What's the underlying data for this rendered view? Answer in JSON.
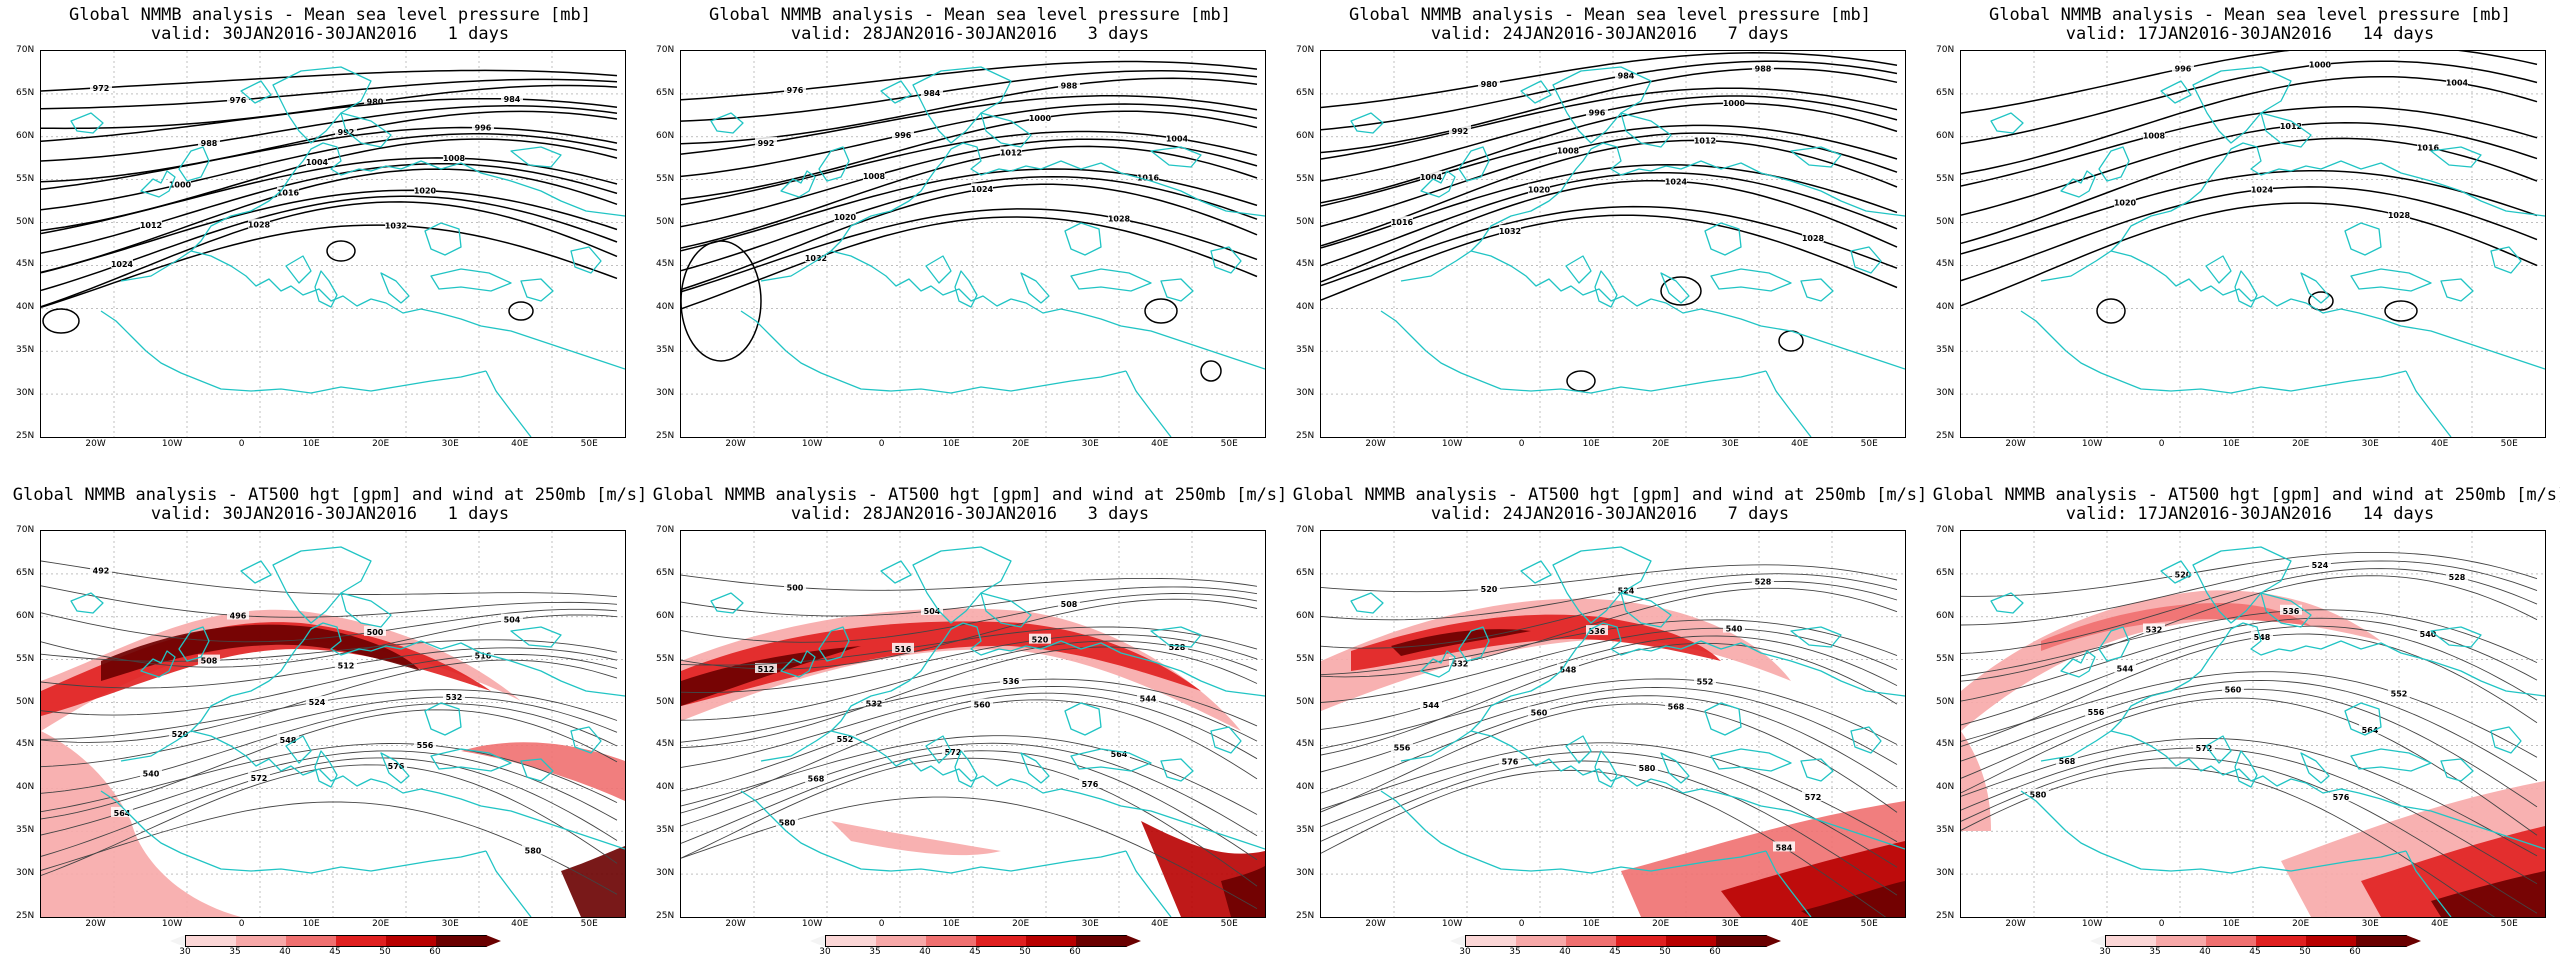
{
  "top_row": {
    "title_line1": "Global NMMB analysis - Mean sea level pressure [mb]",
    "panels": [
      {
        "valid": "valid: 30JAN2016-30JAN2016   1 days",
        "isobars": [
          "972",
          "976",
          "980",
          "984",
          "988",
          "992",
          "996",
          "1000",
          "1004",
          "1008",
          "1012",
          "1016",
          "1020",
          "1024",
          "1028",
          "1032"
        ]
      },
      {
        "valid": "valid: 28JAN2016-30JAN2016   3 days",
        "isobars": [
          "976",
          "984",
          "988",
          "992",
          "996",
          "1000",
          "1004",
          "1008",
          "1012",
          "1016",
          "1020",
          "1024",
          "1028",
          "1032"
        ]
      },
      {
        "valid": "valid: 24JAN2016-30JAN2016   7 days",
        "isobars": [
          "980",
          "984",
          "988",
          "992",
          "996",
          "1000",
          "1004",
          "1008",
          "1012",
          "1016",
          "1020",
          "1024",
          "1028",
          "1032"
        ]
      },
      {
        "valid": "valid: 17JAN2016-30JAN2016   14 days",
        "isobars": [
          "996",
          "1000",
          "1004",
          "1008",
          "1012",
          "1016",
          "1020",
          "1024",
          "1028"
        ]
      }
    ]
  },
  "bottom_row": {
    "title_line1": "Global NMMB analysis - AT500 hgt [gpm] and wind at 250mb [m/s]",
    "panels": [
      {
        "valid": "valid: 30JAN2016-30JAN2016   1 days",
        "heights": [
          "492",
          "496",
          "500",
          "504",
          "508",
          "512",
          "516",
          "520",
          "524",
          "532",
          "540",
          "548",
          "556",
          "564",
          "572",
          "576",
          "580"
        ]
      },
      {
        "valid": "valid: 28JAN2016-30JAN2016   3 days",
        "heights": [
          "500",
          "504",
          "508",
          "512",
          "516",
          "520",
          "528",
          "532",
          "536",
          "544",
          "552",
          "560",
          "564",
          "568",
          "572",
          "576",
          "580"
        ]
      },
      {
        "valid": "valid: 24JAN2016-30JAN2016   7 days",
        "heights": [
          "520",
          "524",
          "528",
          "532",
          "536",
          "540",
          "544",
          "548",
          "552",
          "556",
          "560",
          "568",
          "572",
          "576",
          "580",
          "584"
        ]
      },
      {
        "valid": "valid: 17JAN2016-30JAN2016   14 days",
        "heights": [
          "520",
          "524",
          "528",
          "532",
          "536",
          "540",
          "544",
          "548",
          "552",
          "556",
          "560",
          "564",
          "568",
          "572",
          "576",
          "580"
        ]
      }
    ]
  },
  "lat_labels": [
    "70N",
    "65N",
    "60N",
    "55N",
    "50N",
    "45N",
    "40N",
    "35N",
    "30N",
    "25N"
  ],
  "lon_labels": [
    "20W",
    "10W",
    "0",
    "10E",
    "20E",
    "30E",
    "40E",
    "50E"
  ],
  "colorbar": {
    "labels": [
      "30",
      "35",
      "40",
      "45",
      "50",
      "60"
    ],
    "colors": [
      "#f4f4f4",
      "#fbd6d6",
      "#f7a8a8",
      "#f07070",
      "#e02020",
      "#b80000",
      "#6a0000"
    ]
  },
  "style": {
    "coastline_color": "#21c4c4",
    "contour_color": "#000000"
  }
}
